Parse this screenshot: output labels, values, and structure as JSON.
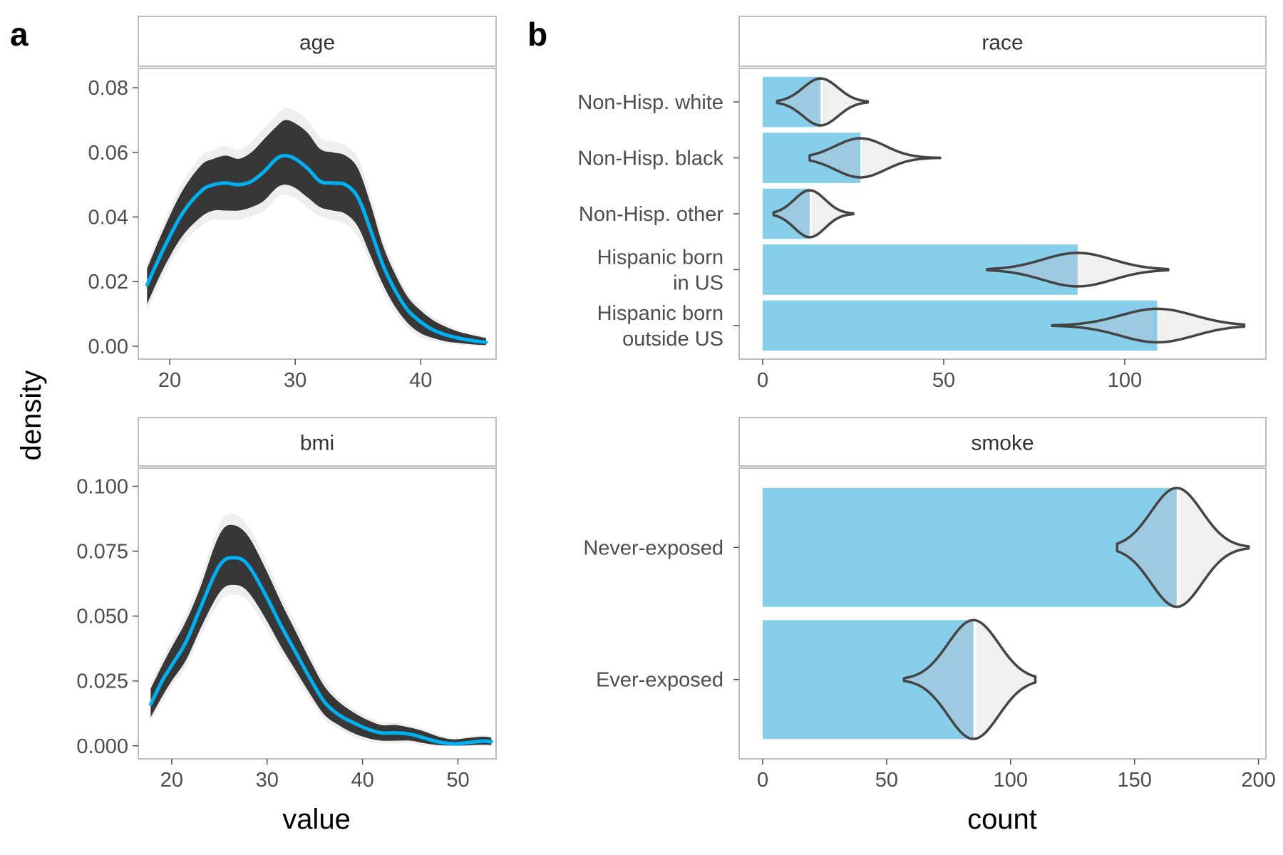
{
  "figure": {
    "panel_a_label": "a",
    "panel_b_label": "b",
    "panel_a_ylabel": "density",
    "panel_a_xlabel": "value",
    "panel_b_xlabel": "count"
  },
  "colors": {
    "observed_line": "#00b0f0",
    "bar_fill": "#87ceeb",
    "violin_left_fill": "#9ecae1",
    "violin_right_fill": "#f0f0f0",
    "violin_stroke": "#444444",
    "imputed_lines": "#222222"
  },
  "chart_data": [
    {
      "type": "line",
      "strip": "age",
      "ylabel": "density",
      "xlabel": "value",
      "xlim": [
        17.5,
        46
      ],
      "ylim": [
        -0.004,
        0.086
      ],
      "xticks": [
        20,
        30,
        40
      ],
      "yticks": [
        0.0,
        0.02,
        0.04,
        0.06,
        0.08
      ],
      "ytick_labels": [
        "0.00",
        "0.02",
        "0.04",
        "0.06",
        "0.08"
      ],
      "observed": {
        "x": [
          18.2,
          19.5,
          21,
          22.5,
          23.5,
          24.5,
          25.5,
          26.5,
          27.5,
          28.5,
          29.2,
          30,
          31,
          32,
          33,
          34,
          35,
          36,
          37,
          38,
          39,
          40,
          41,
          42,
          43,
          44,
          45.2
        ],
        "y": [
          0.019,
          0.03,
          0.041,
          0.048,
          0.05,
          0.0505,
          0.05,
          0.051,
          0.054,
          0.058,
          0.059,
          0.058,
          0.055,
          0.051,
          0.0505,
          0.05,
          0.046,
          0.036,
          0.025,
          0.017,
          0.011,
          0.0075,
          0.005,
          0.0035,
          0.0025,
          0.0018,
          0.0012
        ]
      },
      "imputed_band": {
        "upper": [
          0.024,
          0.036,
          0.048,
          0.056,
          0.058,
          0.059,
          0.058,
          0.06,
          0.064,
          0.068,
          0.07,
          0.069,
          0.066,
          0.061,
          0.06,
          0.059,
          0.055,
          0.044,
          0.031,
          0.022,
          0.015,
          0.011,
          0.008,
          0.006,
          0.0045,
          0.0035,
          0.0025
        ],
        "lower": [
          0.013,
          0.024,
          0.034,
          0.04,
          0.042,
          0.042,
          0.042,
          0.043,
          0.045,
          0.049,
          0.05,
          0.049,
          0.046,
          0.043,
          0.042,
          0.041,
          0.037,
          0.028,
          0.019,
          0.012,
          0.007,
          0.004,
          0.0025,
          0.0015,
          0.001,
          0.0006,
          0.0003
        ]
      }
    },
    {
      "type": "line",
      "strip": "bmi",
      "ylabel": "density",
      "xlabel": "value",
      "xlim": [
        16.5,
        54
      ],
      "ylim": [
        -0.005,
        0.107
      ],
      "xticks": [
        20,
        30,
        40,
        50
      ],
      "yticks": [
        0.0,
        0.025,
        0.05,
        0.075,
        0.1
      ],
      "ytick_labels": [
        "0.000",
        "0.025",
        "0.050",
        "0.075",
        "0.100"
      ],
      "observed": {
        "x": [
          17.8,
          19,
          20,
          21.5,
          23,
          24.5,
          25.5,
          26.5,
          27.5,
          28.5,
          30,
          31.5,
          33,
          34.5,
          36,
          37.5,
          39,
          40.5,
          42,
          43.5,
          45,
          46.5,
          48,
          49.5,
          51,
          52.5,
          53.5
        ],
        "y": [
          0.016,
          0.025,
          0.031,
          0.04,
          0.053,
          0.066,
          0.0715,
          0.0725,
          0.0715,
          0.067,
          0.057,
          0.046,
          0.036,
          0.026,
          0.017,
          0.012,
          0.009,
          0.0065,
          0.005,
          0.005,
          0.0045,
          0.003,
          0.0015,
          0.0008,
          0.0012,
          0.0018,
          0.0016
        ]
      },
      "imputed_band": {
        "upper": [
          0.022,
          0.031,
          0.038,
          0.048,
          0.061,
          0.077,
          0.084,
          0.085,
          0.083,
          0.078,
          0.067,
          0.055,
          0.044,
          0.033,
          0.023,
          0.017,
          0.013,
          0.01,
          0.008,
          0.008,
          0.007,
          0.0055,
          0.0035,
          0.0025,
          0.003,
          0.0035,
          0.0032
        ],
        "lower": [
          0.011,
          0.019,
          0.025,
          0.033,
          0.045,
          0.056,
          0.061,
          0.062,
          0.061,
          0.057,
          0.048,
          0.038,
          0.029,
          0.02,
          0.012,
          0.008,
          0.005,
          0.003,
          0.002,
          0.002,
          0.002,
          0.001,
          0.0003,
          0.0001,
          0.0002,
          0.0004,
          0.0003
        ]
      }
    },
    {
      "type": "bar",
      "orientation": "horizontal",
      "strip": "race",
      "xlabel": "count",
      "xlim": [
        -6.5,
        139
      ],
      "xticks": [
        0,
        50,
        100
      ],
      "categories": [
        "Non-Hisp. white",
        "Non-Hisp. black",
        "Non-Hisp. other",
        "Hispanic born\nin US",
        "Hispanic born\noutside US"
      ],
      "values": [
        16,
        27,
        13,
        87,
        109
      ],
      "violins": [
        {
          "min": 4,
          "max": 29,
          "median": 16,
          "width": 0.42
        },
        {
          "min": 13,
          "max": 49,
          "median": 27,
          "width": 0.35
        },
        {
          "min": 3,
          "max": 25,
          "median": 13,
          "width": 0.42
        },
        {
          "min": 62,
          "max": 112,
          "median": 87,
          "width": 0.3
        },
        {
          "min": 80,
          "max": 133,
          "median": 109,
          "width": 0.3
        }
      ]
    },
    {
      "type": "bar",
      "orientation": "horizontal",
      "strip": "smoke",
      "xlabel": "count",
      "xlim": [
        -9.5,
        203
      ],
      "xticks": [
        0,
        50,
        100,
        150,
        200
      ],
      "categories": [
        "Never-exposed",
        "Ever-exposed"
      ],
      "values": [
        167,
        85
      ],
      "violins": [
        {
          "min": 143,
          "max": 196,
          "median": 167,
          "width": 0.45
        },
        {
          "min": 57,
          "max": 110,
          "median": 85,
          "width": 0.45
        }
      ]
    }
  ]
}
